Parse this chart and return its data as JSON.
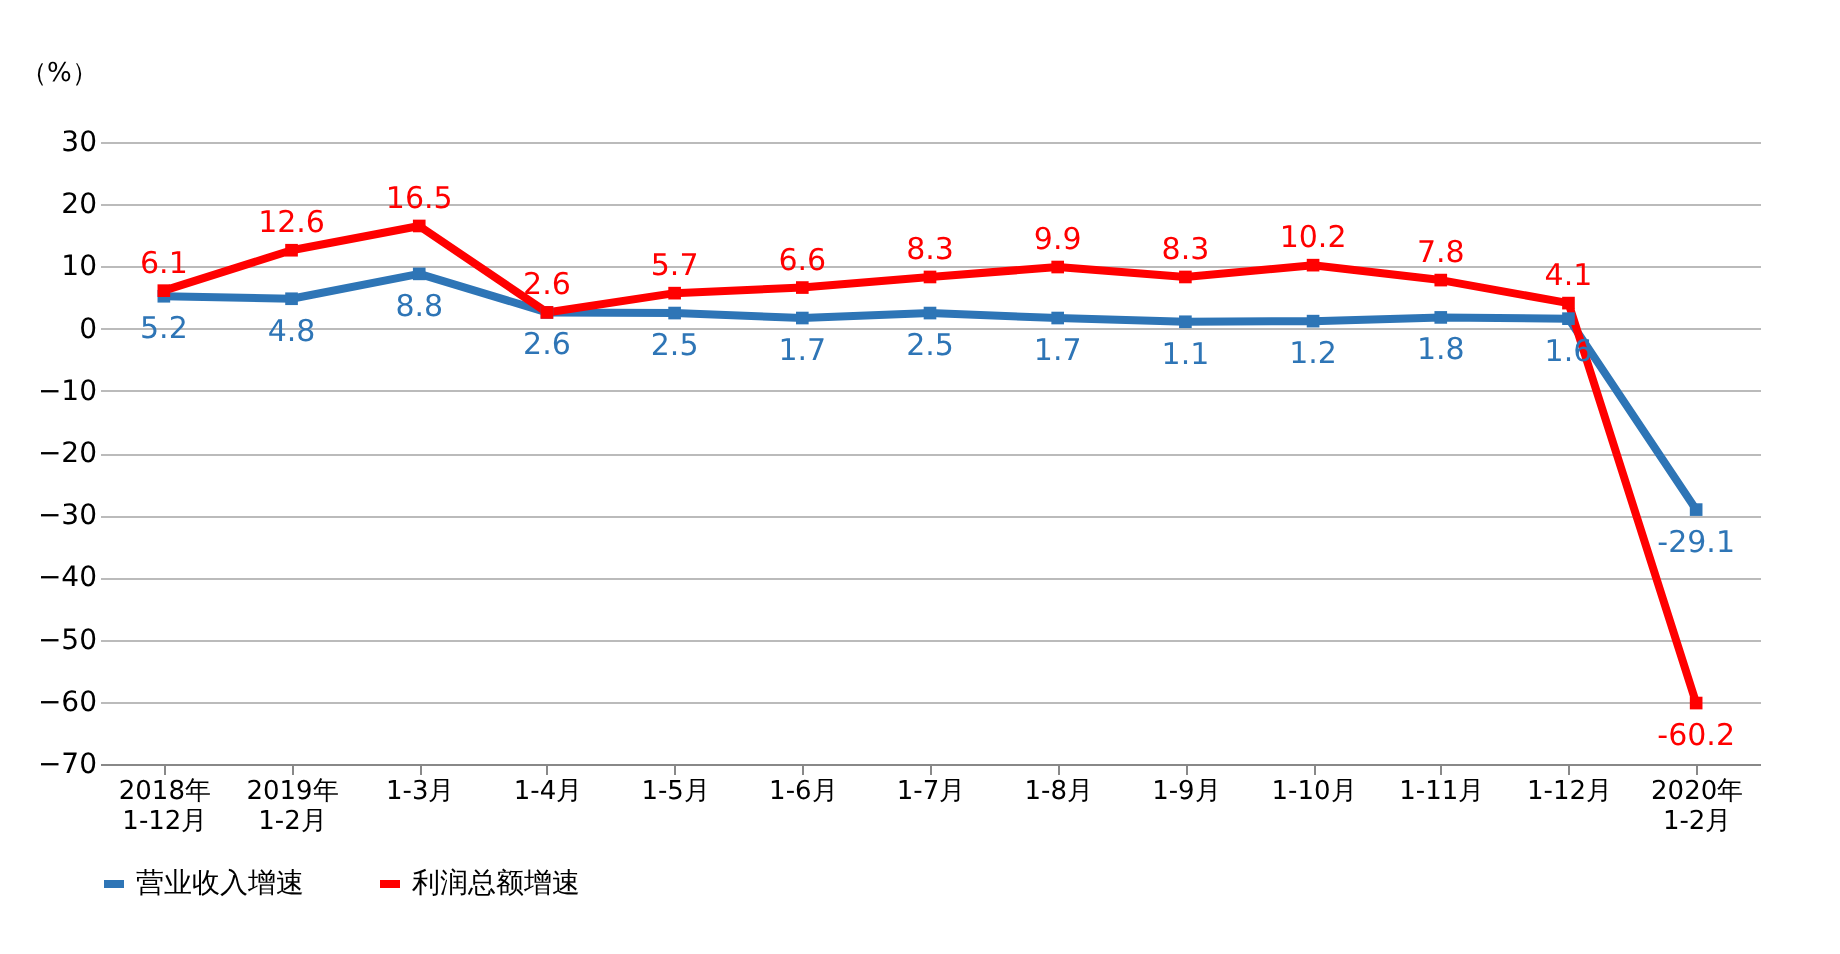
{
  "chart_data": {
    "type": "line",
    "ylabel": "（%）",
    "categories": [
      "2018年\n1-12月",
      "2019年\n1-2月",
      "1-3月",
      "1-4月",
      "1-5月",
      "1-6月",
      "1-7月",
      "1-8月",
      "1-9月",
      "1-10月",
      "1-11月",
      "1-12月",
      "2020年\n1-2月"
    ],
    "series": [
      {
        "name": "营业收入增速",
        "color": "#2e75b6",
        "values": [
          5.2,
          4.8,
          8.8,
          2.6,
          2.5,
          1.7,
          2.5,
          1.7,
          1.1,
          1.2,
          1.8,
          1.6,
          -29.1
        ]
      },
      {
        "name": "利润总额增速",
        "color": "#ff0000",
        "values": [
          6.1,
          12.6,
          16.5,
          2.6,
          5.7,
          6.6,
          8.3,
          9.9,
          8.3,
          10.2,
          7.8,
          4.1,
          -60.2
        ]
      }
    ],
    "ylim": [
      -70,
      30
    ],
    "yticks": [
      -70,
      -60,
      -50,
      -40,
      -30,
      -20,
      -10,
      0,
      10,
      20,
      30
    ],
    "grid": "y",
    "legend": "bottom",
    "marker": "square",
    "line_style": "solid",
    "data_labels": true
  }
}
